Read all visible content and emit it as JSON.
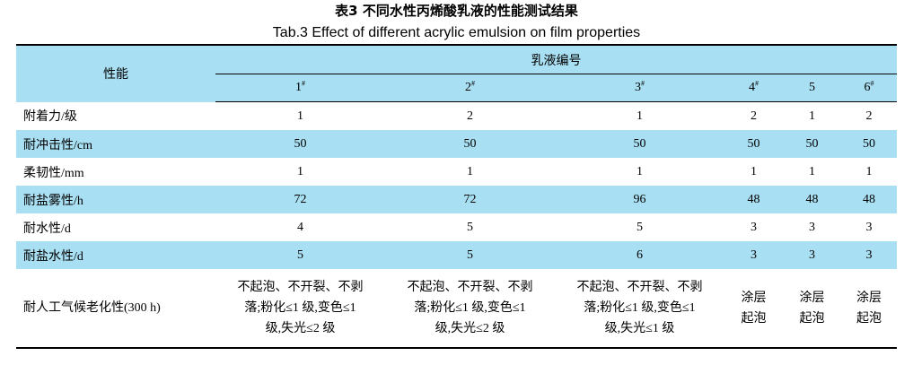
{
  "title_cn": "表3 不同水性丙烯酸乳液的性能测试结果",
  "title_en": "Tab.3 Effect of different acrylic emulsion on film properties",
  "header": {
    "property": "性能",
    "group": "乳液编号",
    "columns": [
      {
        "num": "1",
        "mark": "#"
      },
      {
        "num": "2",
        "mark": "#"
      },
      {
        "num": "3",
        "mark": "#"
      },
      {
        "num": "4",
        "mark": "#"
      },
      {
        "num": "5",
        "mark": ""
      },
      {
        "num": "6",
        "mark": "#"
      }
    ]
  },
  "rows": [
    {
      "label": "附着力/级",
      "values": [
        "1",
        "2",
        "1",
        "2",
        "1",
        "2"
      ]
    },
    {
      "label": "耐冲击性/cm",
      "values": [
        "50",
        "50",
        "50",
        "50",
        "50",
        "50"
      ]
    },
    {
      "label": "柔韧性/mm",
      "values": [
        "1",
        "1",
        "1",
        "1",
        "1",
        "1"
      ]
    },
    {
      "label": "耐盐雾性/h",
      "values": [
        "72",
        "72",
        "96",
        "48",
        "48",
        "48"
      ]
    },
    {
      "label": "耐水性/d",
      "values": [
        "4",
        "5",
        "5",
        "3",
        "3",
        "3"
      ]
    },
    {
      "label": "耐盐水性/d",
      "values": [
        "5",
        "5",
        "6",
        "3",
        "3",
        "3"
      ]
    }
  ],
  "weathering": {
    "label": "耐人工气候老化性(300 h)",
    "values": [
      "不起泡、不开裂、不剥\n落;粉化≤1 级,变色≤1\n级,失光≤2 级",
      "不起泡、不开裂、不剥\n落;粉化≤1 级,变色≤1\n级,失光≤2 级",
      "不起泡、不开裂、不剥\n落;粉化≤1 级,变色≤1\n级,失光≤1 级",
      "涂层\n起泡",
      "涂层\n起泡",
      "涂层\n起泡"
    ]
  },
  "colors": {
    "row_shade": "#a9dff2",
    "rule": "#000000"
  }
}
